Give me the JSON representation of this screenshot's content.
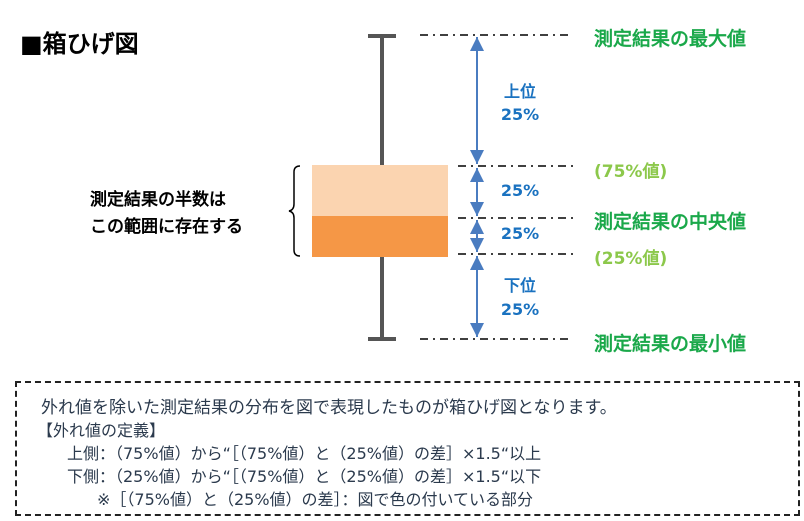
{
  "title": "■箱ひげ図",
  "labels": {
    "max": "測定結果の最大値",
    "q3": "(75%値)",
    "median": "測定結果の中央値",
    "q1": "(25%値)",
    "min": "測定結果の最小値"
  },
  "segments": {
    "upper_name": "上位",
    "upper_pct": "25%",
    "mid_upper_pct": "25%",
    "mid_lower_pct": "25%",
    "lower_name": "下位",
    "lower_pct": "25%"
  },
  "brace_note": [
    "測定結果の半数は",
    "この範囲に存在する"
  ],
  "colors": {
    "box_upper": "#fbd4b0",
    "box_lower": "#f59746",
    "whisker": "#555555",
    "arrow": "#4a7cc0",
    "label_green": "#1aa84a",
    "label_lightgreen": "#8cc84b",
    "pct_blue": "#1a72c0"
  },
  "explanation": {
    "line1": "外れ値を除いた測定結果の分布を図で表現したものが箱ひげ図となります。",
    "line2": "【外れ値の定義】",
    "line3": "上側：（75%値）から“［（75%値）と（25%値）の差］×1.5“以上",
    "line4": "下側：（25%値）から“［（75%値）と（25%値）の差］×1.5“以下",
    "line5": "※［（75%値）と（25%値）の差］：図で色の付いている部分"
  }
}
